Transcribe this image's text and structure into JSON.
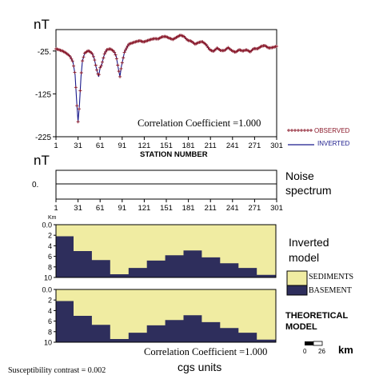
{
  "chart_data": [
    {
      "type": "line",
      "panel": "magnetic-profile",
      "ylabel": "nT",
      "xlabel": "STATION NUMBER",
      "xlim": [
        1,
        301
      ],
      "ylim": [
        -225,
        25
      ],
      "xticks": [
        1,
        31,
        61,
        91,
        121,
        151,
        181,
        211,
        241,
        271,
        301
      ],
      "yticks": [
        -25,
        -125,
        -225
      ],
      "ytick_labels": [
        "-25.",
        "-125",
        "-225"
      ],
      "annotation": "Correlation Coefficient =1.000",
      "legend": {
        "position": "bottom-right",
        "entries": [
          "OBSERVED",
          "INVERTED"
        ]
      },
      "series": [
        {
          "name": "OBSERVED",
          "color": "#8b1a2b",
          "marker": "plus",
          "x": [
            1,
            5,
            10,
            15,
            20,
            24,
            27,
            29,
            31,
            33,
            35,
            37,
            40,
            45,
            50,
            53,
            56,
            59,
            61,
            63,
            65,
            67,
            70,
            75,
            80,
            83,
            86,
            88,
            90,
            92,
            94,
            97,
            100,
            105,
            110,
            115,
            120,
            125,
            130,
            135,
            140,
            145,
            150,
            155,
            160,
            165,
            170,
            175,
            180,
            185,
            190,
            195,
            200,
            205,
            210,
            215,
            220,
            225,
            230,
            235,
            240,
            245,
            250,
            255,
            260,
            265,
            270,
            275,
            280,
            285,
            290,
            295,
            301
          ],
          "y": [
            -20,
            -22,
            -25,
            -30,
            -37,
            -50,
            -80,
            -140,
            -190,
            -150,
            -85,
            -48,
            -30,
            -24,
            -30,
            -42,
            -66,
            -85,
            -64,
            -58,
            -44,
            -32,
            -22,
            -20,
            -26,
            -38,
            -68,
            -85,
            -60,
            -45,
            -28,
            -18,
            -9,
            -6,
            -3,
            -1,
            -4,
            -1,
            2,
            4,
            3,
            8,
            9,
            5,
            2,
            7,
            12,
            9,
            0,
            -2,
            -9,
            -5,
            -3,
            -10,
            -22,
            -26,
            -18,
            -24,
            -24,
            -17,
            -24,
            -28,
            -22,
            -25,
            -22,
            -27,
            -19,
            -20,
            -14,
            -12,
            -18,
            -17,
            -14
          ]
        },
        {
          "name": "INVERTED",
          "color": "#1a1a8c",
          "marker": "none",
          "x": [
            1,
            5,
            10,
            15,
            20,
            24,
            27,
            29,
            31,
            33,
            35,
            37,
            40,
            45,
            50,
            53,
            56,
            59,
            61,
            63,
            65,
            67,
            70,
            75,
            80,
            83,
            86,
            88,
            90,
            92,
            94,
            97,
            100,
            105,
            110,
            115,
            120,
            125,
            130,
            135,
            140,
            145,
            150,
            155,
            160,
            165,
            170,
            175,
            180,
            185,
            190,
            195,
            200,
            205,
            210,
            215,
            220,
            225,
            230,
            235,
            240,
            245,
            250,
            255,
            260,
            265,
            270,
            275,
            280,
            285,
            290,
            295,
            301
          ],
          "y": [
            -20,
            -22,
            -25,
            -30,
            -37,
            -50,
            -80,
            -140,
            -190,
            -150,
            -85,
            -48,
            -30,
            -24,
            -30,
            -42,
            -66,
            -85,
            -64,
            -58,
            -44,
            -32,
            -22,
            -20,
            -26,
            -38,
            -68,
            -85,
            -60,
            -45,
            -28,
            -18,
            -9,
            -6,
            -3,
            -1,
            -4,
            -1,
            2,
            4,
            3,
            8,
            9,
            5,
            2,
            7,
            12,
            9,
            0,
            -2,
            -9,
            -5,
            -3,
            -10,
            -22,
            -26,
            -18,
            -24,
            -24,
            -17,
            -24,
            -28,
            -22,
            -25,
            -22,
            -27,
            -19,
            -20,
            -14,
            -12,
            -18,
            -17,
            -14
          ]
        }
      ]
    },
    {
      "type": "line",
      "panel": "noise-spectrum",
      "ylabel": "nT",
      "xlim": [
        1,
        301
      ],
      "xticks": [
        1,
        31,
        61,
        91,
        121,
        151,
        181,
        211,
        241,
        271,
        301
      ],
      "ytick_labels": [
        "0."
      ],
      "side_label": [
        "Noise",
        "spectrum"
      ],
      "series": [
        {
          "x": [
            1,
            301
          ],
          "y": [
            0,
            0
          ],
          "color": "#000000"
        }
      ]
    },
    {
      "type": "area",
      "panel": "inverted-model",
      "ylabel": "Km",
      "ylim": [
        10,
        0
      ],
      "yticks": [
        0,
        2,
        4,
        6,
        8,
        10
      ],
      "ytick_labels": [
        "0.0",
        "2",
        "4",
        "6",
        "8",
        "10"
      ],
      "xlim": [
        1,
        301
      ],
      "side_label": [
        "Inverted",
        "model"
      ],
      "layers": {
        "upper": "SEDIMENTS",
        "lower": "BASEMENT"
      },
      "basement_top": {
        "x": [
          1,
          25,
          25,
          50,
          50,
          75,
          75,
          100,
          100,
          125,
          125,
          150,
          150,
          175,
          175,
          200,
          200,
          225,
          225,
          250,
          250,
          275,
          275,
          301
        ],
        "y": [
          2.2,
          2.2,
          5.0,
          5.0,
          6.7,
          6.7,
          9.4,
          9.4,
          8.2,
          8.2,
          6.8,
          6.8,
          5.8,
          5.8,
          4.9,
          4.9,
          6.2,
          6.2,
          7.3,
          7.3,
          8.2,
          8.2,
          9.5,
          9.5
        ]
      }
    },
    {
      "type": "area",
      "panel": "theoretical-model",
      "ylabel": "",
      "ylim": [
        10,
        0
      ],
      "yticks": [
        0,
        2,
        4,
        6,
        8,
        10
      ],
      "ytick_labels": [
        "0.0",
        "2",
        "4",
        "6",
        "8",
        "10"
      ],
      "xlim": [
        1,
        301
      ],
      "side_label": [
        "THEORETICAL",
        "MODEL"
      ],
      "annotation": "Correlation Coefficient =1.000",
      "layers": {
        "upper": "SEDIMENTS",
        "lower": "BASEMENT"
      },
      "basement_top": {
        "x": [
          1,
          25,
          25,
          50,
          50,
          75,
          75,
          100,
          100,
          125,
          125,
          150,
          150,
          175,
          175,
          200,
          200,
          225,
          225,
          250,
          250,
          275,
          275,
          301
        ],
        "y": [
          2.2,
          2.2,
          5.0,
          5.0,
          6.7,
          6.7,
          9.4,
          9.4,
          8.2,
          8.2,
          6.8,
          6.8,
          5.8,
          5.8,
          4.9,
          4.9,
          6.2,
          6.2,
          7.3,
          7.3,
          8.2,
          8.2,
          9.5,
          9.5
        ]
      }
    }
  ],
  "legend_model": {
    "sediments": "SEDIMENTS",
    "basement": "BASEMENT"
  },
  "scale_bar": {
    "start": "0",
    "end": "26",
    "unit": "km"
  },
  "footer": {
    "contrast": "Susceptibility contrast = 0.002",
    "units": "cgs units"
  },
  "colors": {
    "sediments": "#f0eca2",
    "basement": "#2e2e5c",
    "observed": "#8b1a2b",
    "inverted": "#1a1a8c"
  }
}
